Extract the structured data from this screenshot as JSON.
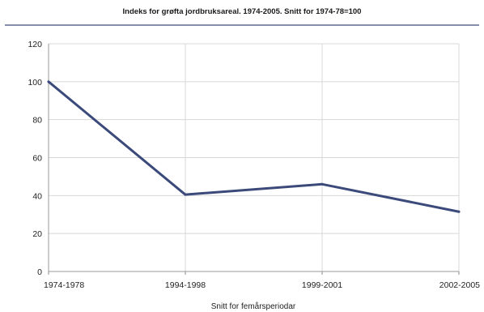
{
  "chart_data": {
    "type": "line",
    "title": "Indeks for grøfta jordbruksareal. 1974-2005. Snitt for 1974-78=100",
    "xlabel": "Snitt for femårsperiodar",
    "ylabel": "",
    "categories": [
      "1974-1978",
      "1994-1998",
      "1999-2001",
      "2002-2005"
    ],
    "series": [
      {
        "values": [
          100,
          40.5,
          46,
          31.5
        ]
      }
    ],
    "ylim": [
      0,
      120
    ],
    "yticks": [
      0,
      20,
      40,
      60,
      80,
      100,
      120
    ],
    "grid": true,
    "line_color": "#3b4a7a",
    "grid_color": "#d8d8d8",
    "rule_color": "#3b4a7a"
  }
}
